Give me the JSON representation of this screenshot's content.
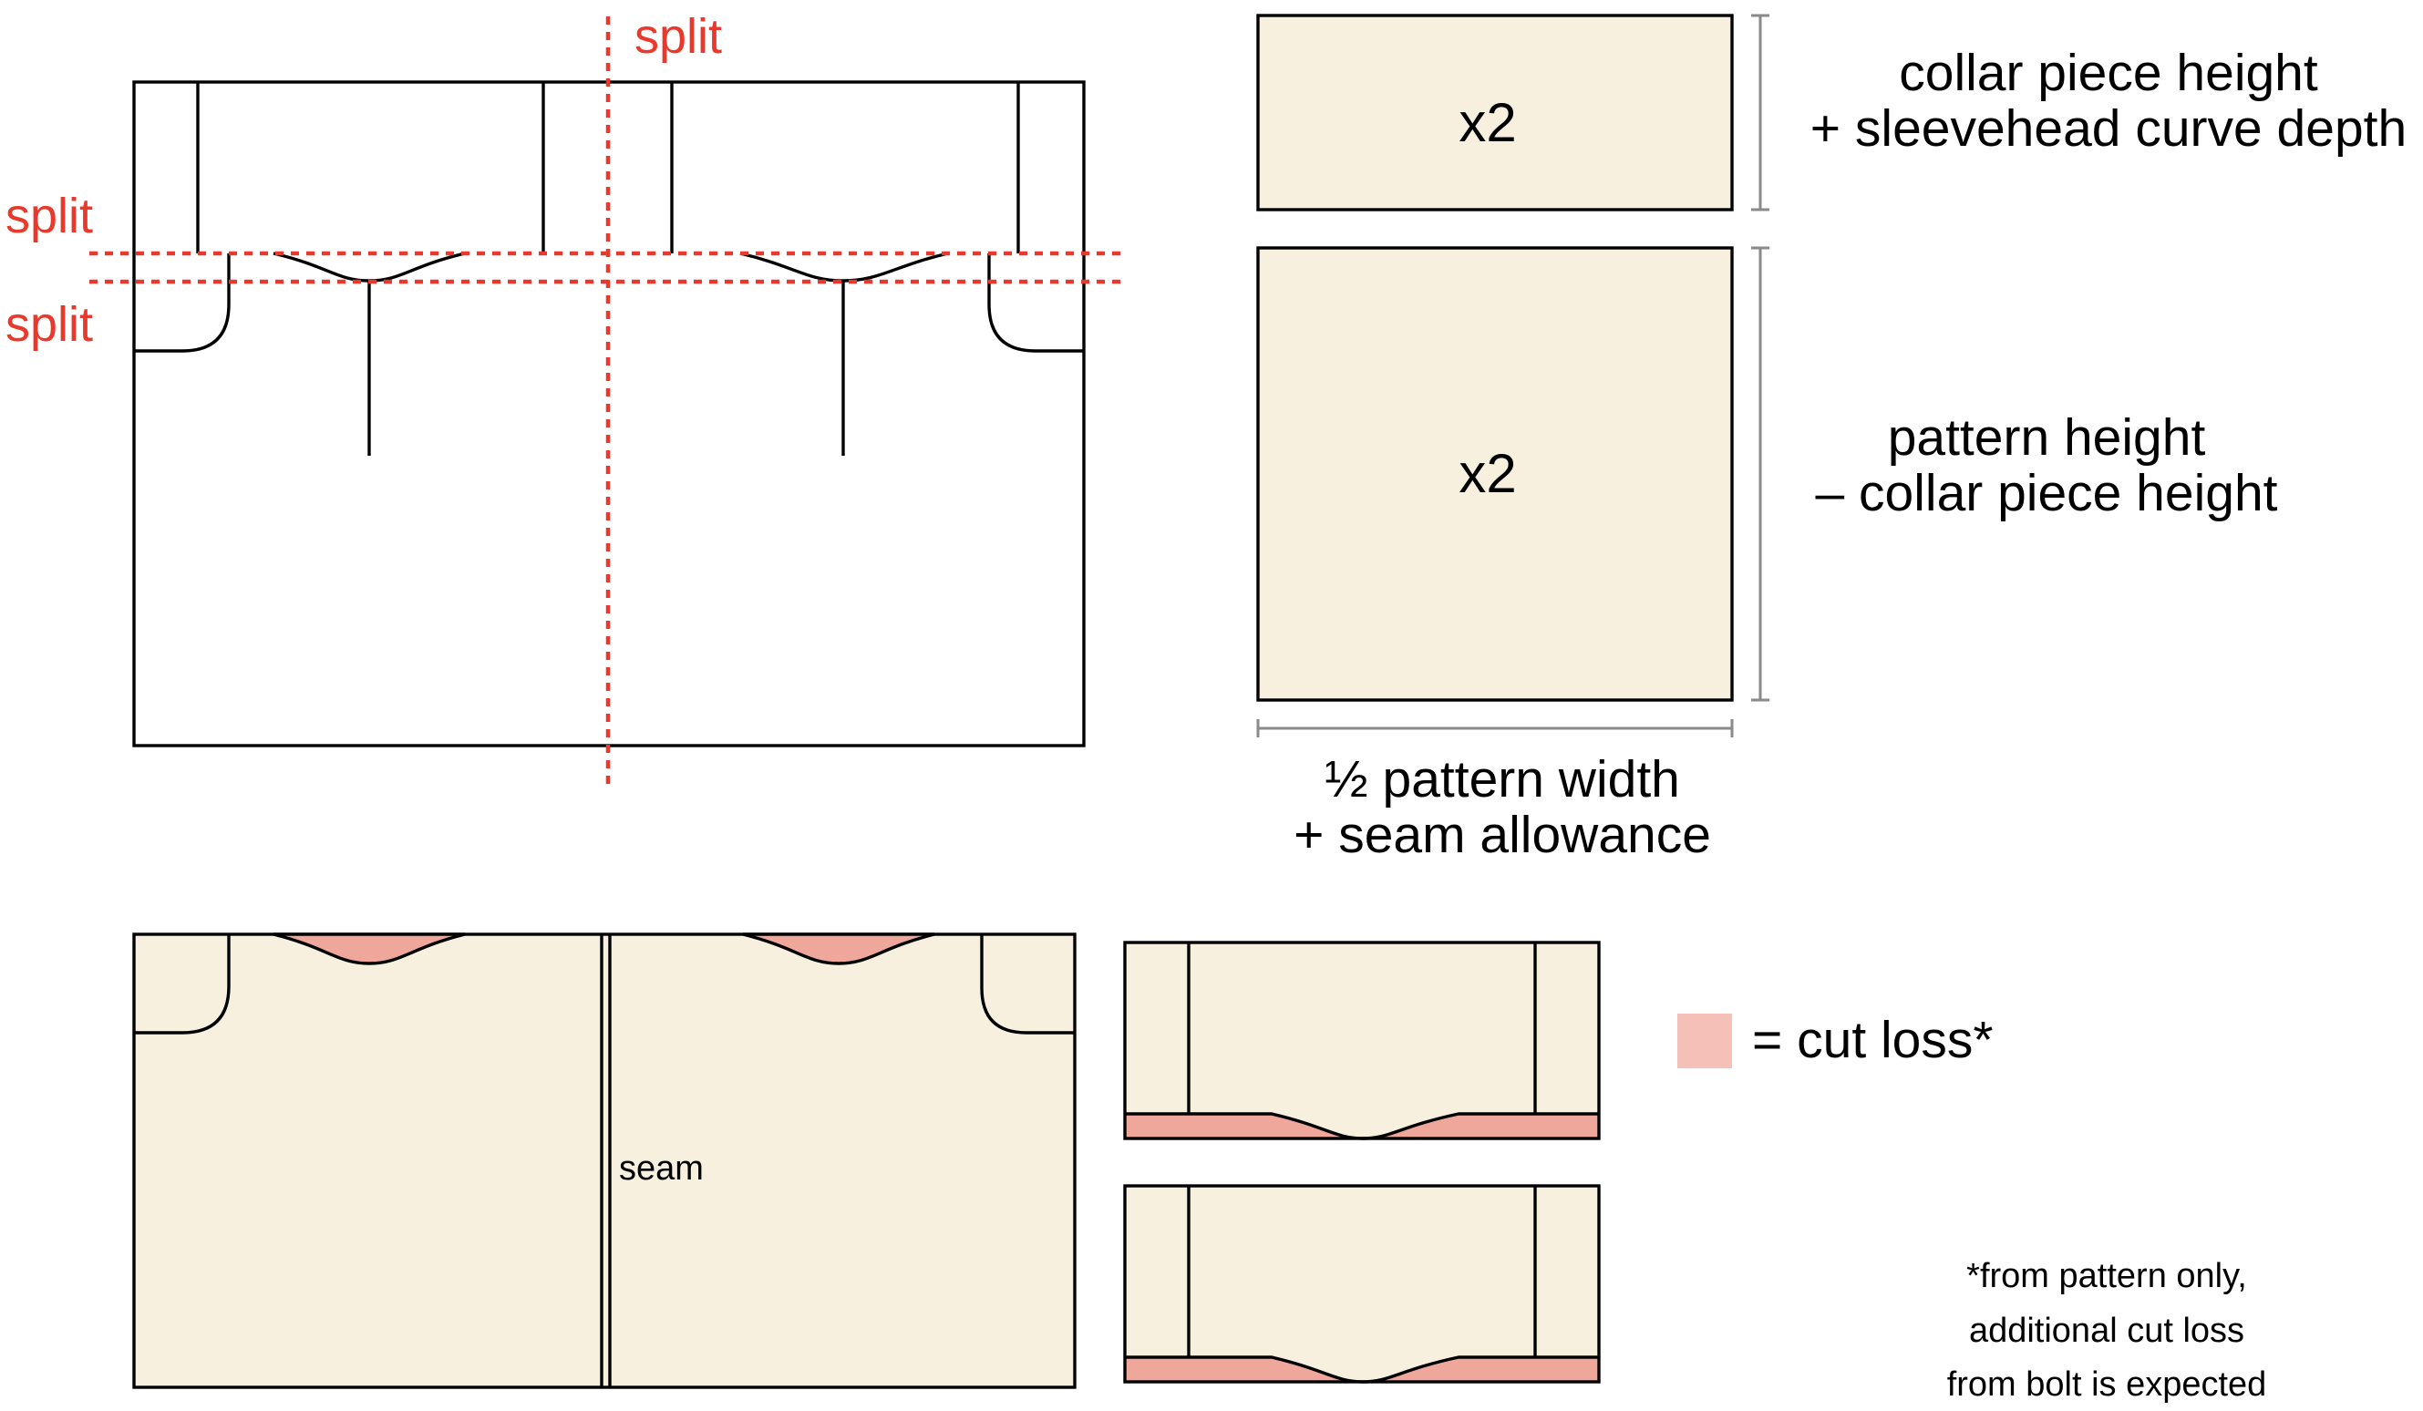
{
  "diagram": {
    "split_labels": [
      "split",
      "split",
      "split"
    ],
    "upper_multiplier": "x2",
    "lower_multiplier": "x2",
    "upper_dimension": {
      "line1": "collar piece height",
      "line2": "+ sleevehead curve depth"
    },
    "lower_dimension": {
      "line1": "pattern height",
      "line2": "– collar piece height"
    },
    "width_dimension": {
      "line1": "½ pattern width",
      "line2": "+ seam allowance"
    },
    "seam_label": "seam",
    "legend_label": "= cut loss*",
    "footnote": {
      "line1": "*from pattern only,",
      "line2": "additional cut loss",
      "line3": "from bolt is expected"
    },
    "colors": {
      "fabric": "#f7f0df",
      "cut_loss": "#eea79a",
      "legend_swatch": "#f5c0b8",
      "split_line": "#e8392c",
      "outline": "#000000",
      "dimension": "#8a8a8a"
    }
  }
}
